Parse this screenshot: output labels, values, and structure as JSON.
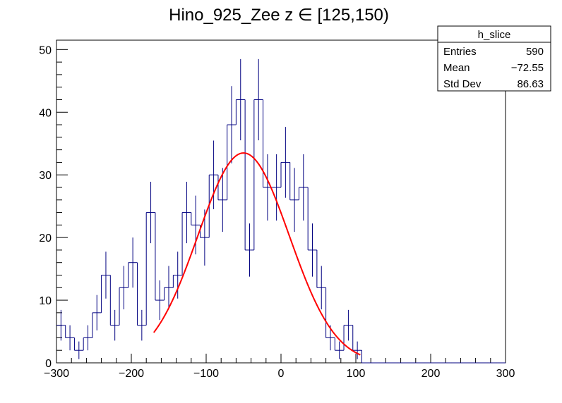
{
  "chart_data": {
    "type": "bar",
    "title": "Hino_925_Zee z  ∈ [125,150)",
    "xlabel": "",
    "ylabel": "",
    "xlim": [
      -300,
      300
    ],
    "ylim": [
      0,
      51.5
    ],
    "x_ticks": [
      -300,
      -200,
      -100,
      0,
      100,
      200,
      300
    ],
    "x_tick_labels": [
      "−300",
      "−200",
      "−100",
      "0",
      "100",
      "200",
      "300"
    ],
    "y_ticks": [
      0,
      10,
      20,
      30,
      40,
      50
    ],
    "y_tick_labels": [
      "0",
      "10",
      "20",
      "30",
      "40",
      "50"
    ],
    "bin_width": 12,
    "bin_edges_start": -300,
    "series": [
      {
        "name": "h_slice",
        "style": "histogram step with error bars",
        "color": "#000080",
        "values": [
          6,
          4,
          2,
          4,
          8,
          14,
          6,
          12,
          16,
          6,
          24,
          10,
          12,
          14,
          24,
          22,
          20,
          30,
          26,
          38,
          42,
          18,
          42,
          28,
          28,
          32,
          26,
          28,
          18,
          12,
          4,
          2,
          6,
          2,
          0,
          0,
          0,
          0,
          0,
          0,
          0,
          0,
          0,
          0,
          0,
          0,
          0,
          0,
          0,
          0
        ]
      },
      {
        "name": "gaus fit",
        "style": "line",
        "color": "#ff0000",
        "function": "gaussian",
        "x_range": [
          -170,
          106
        ],
        "peak": 33.5,
        "mean": -50,
        "sigma": 61
      }
    ],
    "stats_box": {
      "title": "h_slice",
      "rows": [
        {
          "label": "Entries",
          "value": "590"
        },
        {
          "label": "Mean",
          "value": "−72.55"
        },
        {
          "label": "Std Dev",
          "value": "86.63"
        }
      ]
    },
    "grid": false,
    "legend": "top-right"
  }
}
